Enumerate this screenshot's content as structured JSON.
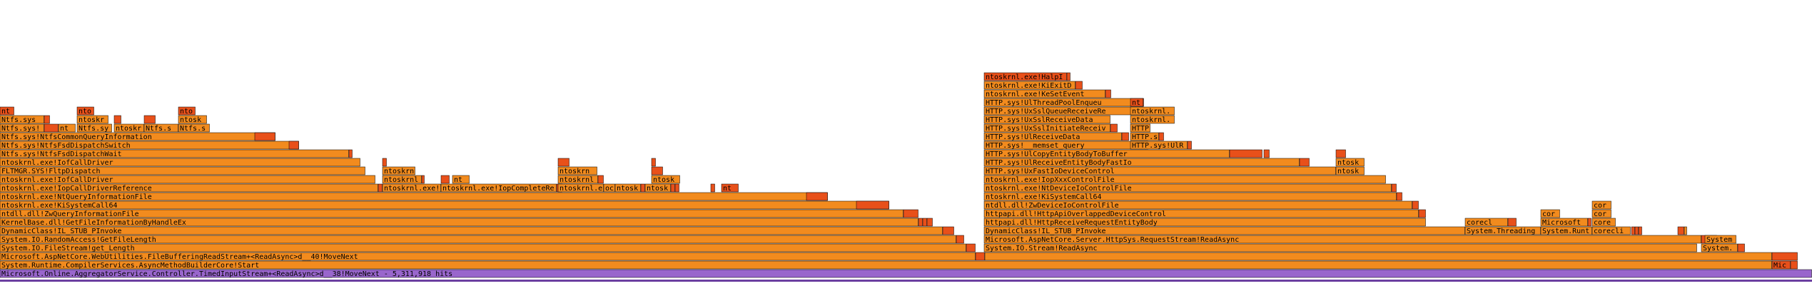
{
  "chart_data": {
    "type": "flame",
    "unit": "hits",
    "total": 2539,
    "colors": {
      "root": "#9966cc",
      "hot": "#e8501a",
      "warm": "#f28b1e",
      "mid": "#f57f17",
      "light": "#f6a14b",
      "stroke": "#000000",
      "axis": "#6b3fa0"
    },
    "frames": [
      {
        "d": 0,
        "s": 0,
        "w": 2539,
        "t": "Microsoft.Online.AggregatorService.Controller.TimedInputStream+<ReadAsync>d__38!MoveNext - 5,311,918 hits",
        "c": "root"
      },
      {
        "d": 1,
        "s": 0,
        "w": 2483,
        "t": "System.Runtime.CompilerServices.AsyncMethodBuilderCore!Start",
        "c": "warm"
      },
      {
        "d": 1,
        "s": 2483,
        "w": 26,
        "t": "Mic",
        "c": "hot"
      },
      {
        "d": 1,
        "s": 2509,
        "w": 10,
        "t": "",
        "c": "hot"
      },
      {
        "d": 2,
        "s": 0,
        "w": 1367,
        "t": "Microsoft.AspNetCore.WebUtilities.FileBufferingReadStream+<ReadAsync>d__40!MoveNext",
        "c": "warm"
      },
      {
        "d": 2,
        "s": 1367,
        "w": 13,
        "t": "",
        "c": "hot"
      },
      {
        "d": 2,
        "s": 1380,
        "w": 1103,
        "t": "",
        "c": "warm"
      },
      {
        "d": 2,
        "s": 2483,
        "w": 36,
        "t": "",
        "c": "hot"
      },
      {
        "d": 3,
        "s": 0,
        "w": 1354,
        "t": "System.IO.FileStream!get_Length",
        "c": "warm"
      },
      {
        "d": 3,
        "s": 1354,
        "w": 13,
        "t": "",
        "c": "hot"
      },
      {
        "d": 3,
        "s": 1379,
        "w": 999,
        "t": "System.IO.Stream!ReadAsync",
        "c": "warm"
      },
      {
        "d": 3,
        "s": 2384,
        "w": 51,
        "t": "System.",
        "c": "warm"
      },
      {
        "d": 3,
        "s": 2435,
        "w": 10,
        "t": "",
        "c": "hot"
      },
      {
        "d": 4,
        "s": 0,
        "w": 1340,
        "t": "System.IO.RandomAccess!GetFileLength",
        "c": "warm"
      },
      {
        "d": 4,
        "s": 1340,
        "w": 11,
        "t": "",
        "c": "hot"
      },
      {
        "d": 4,
        "s": 1379,
        "w": 1005,
        "t": "Microsoft.AspNetCore.Server.HttpSys.RequestStream!ReadAsync",
        "c": "warm"
      },
      {
        "d": 4,
        "s": 2384,
        "w": 22,
        "t": "",
        "c": "hot"
      },
      {
        "d": 4,
        "s": 2389,
        "w": 44,
        "t": "System",
        "c": "warm"
      },
      {
        "d": 5,
        "s": 0,
        "w": 1321,
        "t": "DynamicClass!IL_STUB_PInvoke",
        "c": "warm"
      },
      {
        "d": 5,
        "s": 1321,
        "w": 16,
        "t": "",
        "c": "hot"
      },
      {
        "d": 5,
        "s": 1379,
        "w": 674,
        "t": "DynamicClass!IL_STUB_PInvoke",
        "c": "warm"
      },
      {
        "d": 5,
        "s": 2053,
        "w": 106,
        "t": "System.Threading",
        "c": "warm"
      },
      {
        "d": 5,
        "s": 2159,
        "w": 72,
        "t": "System.Runt",
        "c": "warm"
      },
      {
        "d": 5,
        "s": 2231,
        "w": 54,
        "t": "corecli",
        "c": "warm"
      },
      {
        "d": 5,
        "s": 2286,
        "w": 5,
        "t": "",
        "c": "hot"
      },
      {
        "d": 5,
        "s": 2291,
        "w": 5,
        "t": "",
        "c": "hot"
      },
      {
        "d": 5,
        "s": 2296,
        "w": 5,
        "t": "",
        "c": "hot"
      },
      {
        "d": 5,
        "s": 2351,
        "w": 9,
        "t": "",
        "c": "hot"
      },
      {
        "d": 5,
        "s": 2360,
        "w": 4,
        "t": "",
        "c": "warm"
      },
      {
        "d": 6,
        "s": 0,
        "w": 1287,
        "t": "KernelBase.dll!GetFileInformationByHandleEx",
        "c": "warm"
      },
      {
        "d": 6,
        "s": 1287,
        "w": 6,
        "t": "",
        "c": "hot"
      },
      {
        "d": 6,
        "s": 1293,
        "w": 6,
        "t": "",
        "c": "hot"
      },
      {
        "d": 6,
        "s": 1299,
        "w": 8,
        "t": "",
        "c": "hot"
      },
      {
        "d": 6,
        "s": 1379,
        "w": 619,
        "t": "httpapi.dll!HttpReceiveRequestEntityBody",
        "c": "warm"
      },
      {
        "d": 6,
        "s": 2053,
        "w": 60,
        "t": "corecl",
        "c": "warm"
      },
      {
        "d": 6,
        "s": 2113,
        "w": 12,
        "t": "",
        "c": "hot"
      },
      {
        "d": 6,
        "s": 2159,
        "w": 66,
        "t": "Microsoft",
        "c": "warm"
      },
      {
        "d": 6,
        "s": 2225,
        "w": 5,
        "t": "",
        "c": "hot"
      },
      {
        "d": 6,
        "s": 2231,
        "w": 33,
        "t": "core",
        "c": "warm"
      },
      {
        "d": 6,
        "s": 2056,
        "w": 0,
        "t": "",
        "c": "hot"
      },
      {
        "d": 7,
        "s": 0,
        "w": 1266,
        "t": "ntdll.dll!ZwQueryInformationFile",
        "c": "warm"
      },
      {
        "d": 7,
        "s": 1266,
        "w": 21,
        "t": "",
        "c": "hot"
      },
      {
        "d": 7,
        "s": 1379,
        "w": 609,
        "t": "httpapi.dll!HttpApiOverlappedDeviceControl",
        "c": "warm"
      },
      {
        "d": 7,
        "s": 1988,
        "w": 10,
        "t": "",
        "c": "hot"
      },
      {
        "d": 7,
        "s": 2159,
        "w": 27,
        "t": "cor",
        "c": "warm"
      },
      {
        "d": 7,
        "s": 2231,
        "w": 27,
        "t": "cor",
        "c": "warm"
      },
      {
        "d": 8,
        "s": 0,
        "w": 1246,
        "t": "ntoskrnl.exe!KiSystemCall64",
        "c": "warm"
      },
      {
        "d": 8,
        "s": 1200,
        "w": 46,
        "t": "",
        "c": "hot"
      },
      {
        "d": 8,
        "s": 1379,
        "w": 600,
        "t": "ntdll.dll!ZwDeviceIoControlFile",
        "c": "warm"
      },
      {
        "d": 8,
        "s": 1979,
        "w": 9,
        "t": "",
        "c": "hot"
      },
      {
        "d": 8,
        "s": 2231,
        "w": 27,
        "t": "cor",
        "c": "warm"
      },
      {
        "d": 9,
        "s": 0,
        "w": 1160,
        "t": "ntoskrnl.exe!NtQueryInformationFile",
        "c": "warm"
      },
      {
        "d": 9,
        "s": 1130,
        "w": 30,
        "t": "",
        "c": "hot"
      },
      {
        "d": 9,
        "s": 1379,
        "w": 578,
        "t": "ntoskrnl.exe!KiSystemCall64",
        "c": "warm"
      },
      {
        "d": 9,
        "s": 1957,
        "w": 8,
        "t": "",
        "c": "hot"
      },
      {
        "d": 10,
        "s": 0,
        "w": 530,
        "t": "ntoskrnl.exe!IopCallDriverReference",
        "c": "warm"
      },
      {
        "d": 10,
        "s": 530,
        "w": 6,
        "t": "",
        "c": "hot"
      },
      {
        "d": 10,
        "s": 536,
        "w": 82,
        "t": "ntoskrnl.exe!IopCompleteRequest",
        "c": "warm"
      },
      {
        "d": 10,
        "s": 618,
        "w": 162,
        "t": "ntoskrnl.exe!IopCompleteRequest",
        "c": "warm"
      },
      {
        "d": 10,
        "s": 780,
        "w": 8,
        "t": "",
        "c": "hot"
      },
      {
        "d": 10,
        "s": 782,
        "w": 64,
        "t": "ntoskrnl.exe!ExAll",
        "c": "warm"
      },
      {
        "d": 10,
        "s": 846,
        "w": 16,
        "t": "oc",
        "c": "warm"
      },
      {
        "d": 10,
        "s": 862,
        "w": 36,
        "t": "ntosk",
        "c": "warm"
      },
      {
        "d": 10,
        "s": 898,
        "w": 6,
        "t": "",
        "c": "hot"
      },
      {
        "d": 10,
        "s": 904,
        "w": 36,
        "t": "ntosk",
        "c": "warm"
      },
      {
        "d": 10,
        "s": 940,
        "w": 6,
        "t": "",
        "c": "hot"
      },
      {
        "d": 10,
        "s": 946,
        "w": 6,
        "t": "",
        "c": "hot"
      },
      {
        "d": 10,
        "s": 996,
        "w": 6,
        "t": "",
        "c": "hot"
      },
      {
        "d": 10,
        "s": 1011,
        "w": 24,
        "t": "nt",
        "c": "hot"
      },
      {
        "d": 10,
        "s": 1379,
        "w": 571,
        "t": "ntoskrnl.exe!NtDeviceIoControlFile",
        "c": "warm"
      },
      {
        "d": 10,
        "s": 1950,
        "w": 7,
        "t": "",
        "c": "hot"
      },
      {
        "d": 11,
        "s": 0,
        "w": 526,
        "t": "ntoskrnl.exe!IofCallDriver",
        "c": "warm"
      },
      {
        "d": 11,
        "s": 536,
        "w": 55,
        "t": "ntoskrnl.ex",
        "c": "warm"
      },
      {
        "d": 11,
        "s": 591,
        "w": 4,
        "t": "",
        "c": "hot"
      },
      {
        "d": 11,
        "s": 618,
        "w": 12,
        "t": "",
        "c": "hot"
      },
      {
        "d": 11,
        "s": 634,
        "w": 24,
        "t": "nt",
        "c": "warm"
      },
      {
        "d": 11,
        "s": 658,
        "w": 0,
        "t": "",
        "c": "hot"
      },
      {
        "d": 11,
        "s": 782,
        "w": 56,
        "t": "ntoskrnl.",
        "c": "warm"
      },
      {
        "d": 11,
        "s": 838,
        "w": 8,
        "t": "",
        "c": "hot"
      },
      {
        "d": 11,
        "s": 913,
        "w": 40,
        "t": "ntosk",
        "c": "warm"
      },
      {
        "d": 11,
        "s": 1379,
        "w": 563,
        "t": "ntoskrnl.exe!IopXxxControlFile",
        "c": "warm"
      },
      {
        "d": 12,
        "s": 0,
        "w": 512,
        "t": "FLTMGR.SYS!FltpDispatch",
        "c": "warm"
      },
      {
        "d": 12,
        "s": 536,
        "w": 46,
        "t": "ntoskrn",
        "c": "warm"
      },
      {
        "d": 12,
        "s": 782,
        "w": 55,
        "t": "ntoskrn",
        "c": "warm"
      },
      {
        "d": 12,
        "s": 913,
        "w": 16,
        "t": "",
        "c": "hot"
      },
      {
        "d": 12,
        "s": 1379,
        "w": 493,
        "t": "HTTP.sys!UxFastIoDeviceControl",
        "c": "warm"
      },
      {
        "d": 12,
        "s": 1872,
        "w": 40,
        "t": "ntosk",
        "c": "warm"
      },
      {
        "d": 13,
        "s": 0,
        "w": 505,
        "t": "ntoskrnl.exe!IofCallDriver",
        "c": "warm"
      },
      {
        "d": 13,
        "s": 536,
        "w": 6,
        "t": "",
        "c": "hot"
      },
      {
        "d": 13,
        "s": 782,
        "w": 16,
        "t": "",
        "c": "hot"
      },
      {
        "d": 13,
        "s": 913,
        "w": 6,
        "t": "",
        "c": "hot"
      },
      {
        "d": 13,
        "s": 1379,
        "w": 442,
        "t": "HTTP.sys!UlReceiveEntityBodyFastIo",
        "c": "warm"
      },
      {
        "d": 13,
        "s": 1821,
        "w": 14,
        "t": "",
        "c": "hot"
      },
      {
        "d": 13,
        "s": 1872,
        "w": 40,
        "t": "ntosk",
        "c": "warm"
      },
      {
        "d": 14,
        "s": 0,
        "w": 489,
        "t": "Ntfs.sys!NtfsFsdDispatchWait",
        "c": "warm"
      },
      {
        "d": 14,
        "s": 489,
        "w": 5,
        "t": "",
        "c": "hot"
      },
      {
        "d": 14,
        "s": 1379,
        "w": 344,
        "t": "HTTP.sys!UlCopyEntityBodyToBuffer",
        "c": "warm"
      },
      {
        "d": 14,
        "s": 1723,
        "w": 46,
        "t": "",
        "c": "hot"
      },
      {
        "d": 14,
        "s": 1771,
        "w": 8,
        "t": "",
        "c": "hot"
      },
      {
        "d": 14,
        "s": 1872,
        "w": 14,
        "t": "",
        "c": "hot"
      },
      {
        "d": 15,
        "s": 0,
        "w": 419,
        "t": "Ntfs.sys!NtfsFsdDispatchSwitch",
        "c": "warm"
      },
      {
        "d": 15,
        "s": 405,
        "w": 14,
        "t": "",
        "c": "hot"
      },
      {
        "d": 15,
        "s": 1379,
        "w": 224,
        "t": "HTTP.sys!__memset_query",
        "c": "warm"
      },
      {
        "d": 15,
        "s": 1603,
        "w": 6,
        "t": "",
        "c": "hot"
      },
      {
        "d": 15,
        "s": 1584,
        "w": 80,
        "t": "HTTP.sys!UlRele",
        "c": "warm"
      },
      {
        "d": 15,
        "s": 1664,
        "w": 6,
        "t": "",
        "c": "hot"
      },
      {
        "d": 16,
        "s": 0,
        "w": 386,
        "t": "Ntfs.sys!NtfsCommonQueryInformation",
        "c": "warm"
      },
      {
        "d": 16,
        "s": 357,
        "w": 29,
        "t": "",
        "c": "hot"
      },
      {
        "d": 16,
        "s": 1379,
        "w": 193,
        "t": "HTTP.sys!UlReceiveData",
        "c": "warm"
      },
      {
        "d": 16,
        "s": 1572,
        "w": 10,
        "t": "",
        "c": "hot"
      },
      {
        "d": 16,
        "s": 1584,
        "w": 40,
        "t": "HTTP.sys!P",
        "c": "warm"
      },
      {
        "d": 16,
        "s": 1624,
        "w": 7,
        "t": "",
        "c": "hot"
      },
      {
        "d": 17,
        "s": 0,
        "w": 62,
        "t": "Ntfs.sys!Ntf",
        "c": "warm"
      },
      {
        "d": 17,
        "s": 62,
        "w": 20,
        "t": "",
        "c": "hot"
      },
      {
        "d": 17,
        "s": 82,
        "w": 24,
        "t": "nt",
        "c": "warm"
      },
      {
        "d": 17,
        "s": 108,
        "w": 49,
        "t": "Ntfs.sy",
        "c": "warm"
      },
      {
        "d": 17,
        "s": 160,
        "w": 42,
        "t": "ntoskr",
        "c": "warm"
      },
      {
        "d": 17,
        "s": 202,
        "w": 48,
        "t": "Ntfs.s",
        "c": "warm"
      },
      {
        "d": 17,
        "s": 250,
        "w": 44,
        "t": "Ntfs.s",
        "c": "warm"
      },
      {
        "d": 17,
        "s": 1379,
        "w": 177,
        "t": "HTTP.sys!UxSslInitiateReceive",
        "c": "warm"
      },
      {
        "d": 17,
        "s": 1556,
        "w": 10,
        "t": "",
        "c": "hot"
      },
      {
        "d": 17,
        "s": 1584,
        "w": 28,
        "t": "HTTP.sys!U",
        "c": "warm"
      },
      {
        "d": 18,
        "s": 0,
        "w": 62,
        "t": "Ntfs.sys",
        "c": "warm"
      },
      {
        "d": 18,
        "s": 62,
        "w": 8,
        "t": "",
        "c": "hot"
      },
      {
        "d": 18,
        "s": 108,
        "w": 44,
        "t": "ntoskr",
        "c": "warm"
      },
      {
        "d": 18,
        "s": 160,
        "w": 10,
        "t": "",
        "c": "hot"
      },
      {
        "d": 18,
        "s": 202,
        "w": 16,
        "t": "",
        "c": "hot"
      },
      {
        "d": 18,
        "s": 250,
        "w": 40,
        "t": "ntosk",
        "c": "warm"
      },
      {
        "d": 18,
        "s": 1379,
        "w": 177,
        "t": "HTTP.sys!UxSslReceiveData",
        "c": "warm"
      },
      {
        "d": 18,
        "s": 1584,
        "w": 62,
        "t": "ntoskrnl.e",
        "c": "warm"
      },
      {
        "d": 19,
        "s": 0,
        "w": 20,
        "t": "nt",
        "c": "hot"
      },
      {
        "d": 19,
        "s": 108,
        "w": 24,
        "t": "nto",
        "c": "hot"
      },
      {
        "d": 19,
        "s": 250,
        "w": 24,
        "t": "nto",
        "c": "hot"
      },
      {
        "d": 19,
        "s": 1379,
        "w": 224,
        "t": "HTTP.sys!UxSslQueueReceiveRe",
        "c": "warm"
      },
      {
        "d": 19,
        "s": 1584,
        "w": 62,
        "t": "ntoskrnl.e",
        "c": "warm"
      },
      {
        "d": 20,
        "s": 1379,
        "w": 210,
        "t": "HTTP.sys!UlThreadPoolEnqueu",
        "c": "warm"
      },
      {
        "d": 20,
        "s": 1589,
        "w": 14,
        "t": "",
        "c": "hot"
      },
      {
        "d": 20,
        "s": 1584,
        "w": 18,
        "t": "nt",
        "c": "hot"
      },
      {
        "d": 21,
        "s": 1379,
        "w": 170,
        "t": "ntoskrnl.exe!KeSetEvent",
        "c": "warm"
      },
      {
        "d": 21,
        "s": 1549,
        "w": 8,
        "t": "",
        "c": "hot"
      },
      {
        "d": 22,
        "s": 1379,
        "w": 128,
        "t": "ntoskrnl.exe!KiExitDis",
        "c": "warm"
      },
      {
        "d": 22,
        "s": 1507,
        "w": 10,
        "t": "",
        "c": "hot"
      },
      {
        "d": 23,
        "s": 1379,
        "w": 116,
        "t": "ntoskrnl.exe!HalpI",
        "c": "hot"
      },
      {
        "d": 23,
        "s": 1495,
        "w": 5,
        "t": "",
        "c": "hot"
      }
    ]
  }
}
